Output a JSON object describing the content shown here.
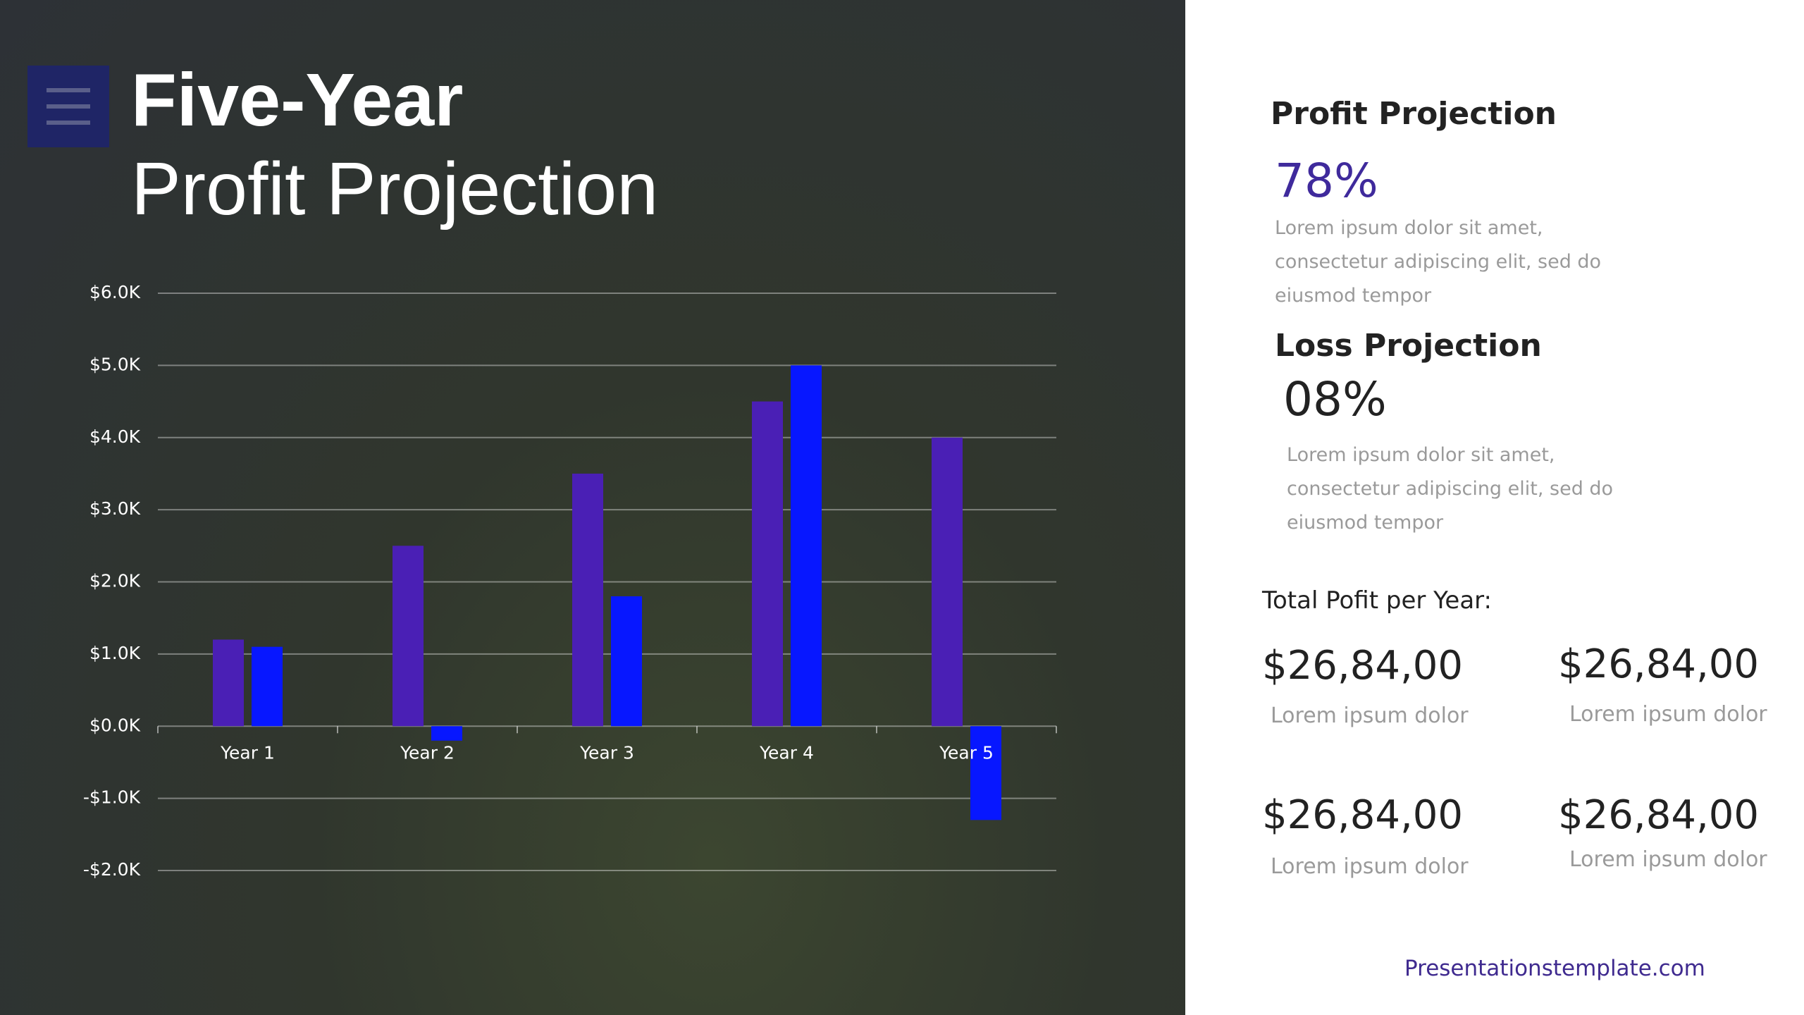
{
  "chart_data": {
    "type": "bar",
    "title": "Five-Year",
    "subtitle": "Profit Projection",
    "categories": [
      "Year 1",
      "Year 2",
      "Year 3",
      "Year 4",
      "Year 5"
    ],
    "series": [
      {
        "color": "#4a1fb5",
        "values": [
          1.2,
          2.5,
          3.5,
          4.5,
          4.0
        ]
      },
      {
        "color": "#0717ff",
        "values": [
          1.1,
          -0.2,
          1.8,
          5.0,
          -1.3
        ]
      }
    ],
    "ylim": [
      -2,
      6
    ],
    "yticks": [
      {
        "value": -2,
        "label": "-$2.0K"
      },
      {
        "value": -1,
        "label": "-$1.0K"
      },
      {
        "value": 0,
        "label": "$0.0K"
      },
      {
        "value": 1,
        "label": "$1.0K"
      },
      {
        "value": 2,
        "label": "$2.0K"
      },
      {
        "value": 3,
        "label": "$3.0K"
      },
      {
        "value": 4,
        "label": "$4.0K"
      },
      {
        "value": 5,
        "label": "$5.0K"
      },
      {
        "value": 6,
        "label": "$6.0K"
      }
    ],
    "grid": true
  },
  "panel": {
    "sections": [
      {
        "heading": "Profit Projection",
        "value": "78%",
        "text": "Lorem ipsum dolor sit amet, consectetur adipiscing elit, sed do eiusmod tempor"
      },
      {
        "heading": "Loss Projection",
        "value": "08%",
        "text": "Lorem ipsum dolor sit amet, consectetur adipiscing elit, sed do eiusmod tempor"
      }
    ],
    "total_heading": "Total Pofit per Year:",
    "totals": [
      {
        "value": "$26,84,00",
        "label": "Lorem ipsum dolor"
      },
      {
        "value": "$26,84,00",
        "label": "Lorem ipsum dolor"
      },
      {
        "value": "$26,84,00",
        "label": "Lorem ipsum dolor"
      },
      {
        "value": "$26,84,00",
        "label": "Lorem ipsum dolor"
      }
    ],
    "footer": "Presentationstemplate.com"
  }
}
